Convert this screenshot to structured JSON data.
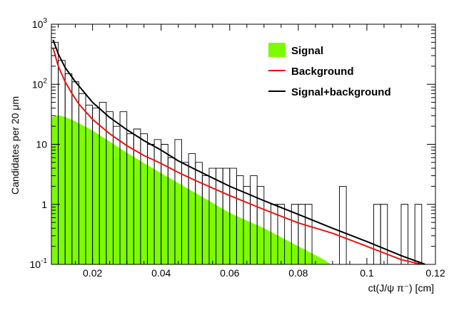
{
  "chart_data": {
    "type": "line",
    "title": "",
    "xlabel": "ct(J/ψ π⁻) [cm]",
    "ylabel": "Candidates per 20 μm",
    "xlim": [
      0.008,
      0.12
    ],
    "ylim": [
      0.1,
      1000
    ],
    "yscale": "log",
    "x_ticks": [
      {
        "value": 0.02,
        "label": "0.02"
      },
      {
        "value": 0.04,
        "label": "0.04"
      },
      {
        "value": 0.06,
        "label": "0.06"
      },
      {
        "value": 0.08,
        "label": "0.08"
      },
      {
        "value": 0.1,
        "label": "0.1"
      },
      {
        "value": 0.12,
        "label": "0.12"
      }
    ],
    "y_ticks": [
      {
        "value": 0.1,
        "base": "10",
        "exp": "-1",
        "text": "10⁻¹"
      },
      {
        "value": 1,
        "base": "1",
        "exp": "",
        "text": "1"
      },
      {
        "value": 10,
        "base": "10",
        "exp": "",
        "text": "10"
      },
      {
        "value": 100,
        "base": "10",
        "exp": "2",
        "text": "10²"
      },
      {
        "value": 1000,
        "base": "10",
        "exp": "3",
        "text": "10³"
      }
    ],
    "legend_position": "top-right",
    "legend": [
      {
        "label": "Signal",
        "style": "fill",
        "color": "#7cfc00"
      },
      {
        "label": "Background",
        "style": "line",
        "color": "#ee1111"
      },
      {
        "label": "Signal+background",
        "style": "line",
        "color": "#000000"
      }
    ],
    "series": [
      {
        "name": "Signal",
        "kind": "area",
        "color": "#7cfc00",
        "x": [
          0.008,
          0.0095,
          0.0105,
          0.0115,
          0.013,
          0.015,
          0.02,
          0.03,
          0.04,
          0.05,
          0.06,
          0.07,
          0.08,
          0.0875,
          0.0895
        ],
        "y": [
          28,
          30,
          30,
          29,
          27,
          24,
          17,
          7.2,
          3.3,
          1.55,
          0.72,
          0.4,
          0.2,
          0.12,
          0.1
        ]
      },
      {
        "name": "Background",
        "kind": "line",
        "color": "#ee1111",
        "x": [
          0.0085,
          0.01,
          0.012,
          0.014,
          0.016,
          0.018,
          0.02,
          0.025,
          0.03,
          0.035,
          0.04,
          0.045,
          0.05,
          0.06,
          0.07,
          0.08,
          0.09,
          0.1,
          0.11,
          0.116
        ],
        "y": [
          400,
          200,
          110,
          70,
          47,
          35,
          26,
          15,
          9.5,
          6.5,
          4.8,
          3.4,
          2.5,
          1.4,
          0.82,
          0.49,
          0.33,
          0.2,
          0.12,
          0.1
        ]
      },
      {
        "name": "Signal+background",
        "kind": "line",
        "color": "#000000",
        "x": [
          0.0085,
          0.01,
          0.012,
          0.015,
          0.02,
          0.025,
          0.03,
          0.035,
          0.04,
          0.045,
          0.05,
          0.06,
          0.07,
          0.08,
          0.09,
          0.1,
          0.11,
          0.117
        ],
        "y": [
          550,
          320,
          190,
          110,
          50,
          28,
          17.5,
          11.5,
          8,
          5.3,
          3.8,
          2,
          1.15,
          0.68,
          0.4,
          0.24,
          0.14,
          0.1
        ]
      },
      {
        "name": "Data histogram",
        "kind": "step",
        "color": "#000000",
        "bin_width": 0.002,
        "bins": [
          {
            "x": 0.008,
            "y": 500
          },
          {
            "x": 0.01,
            "y": 250
          },
          {
            "x": 0.012,
            "y": 150
          },
          {
            "x": 0.014,
            "y": 110
          },
          {
            "x": 0.016,
            "y": 70
          },
          {
            "x": 0.018,
            "y": 45
          },
          {
            "x": 0.02,
            "y": 40
          },
          {
            "x": 0.022,
            "y": 50
          },
          {
            "x": 0.024,
            "y": 35
          },
          {
            "x": 0.026,
            "y": 20
          },
          {
            "x": 0.028,
            "y": 35
          },
          {
            "x": 0.03,
            "y": 15
          },
          {
            "x": 0.032,
            "y": 18
          },
          {
            "x": 0.034,
            "y": 15
          },
          {
            "x": 0.036,
            "y": 10
          },
          {
            "x": 0.038,
            "y": 12
          },
          {
            "x": 0.04,
            "y": 10
          },
          {
            "x": 0.042,
            "y": 6
          },
          {
            "x": 0.044,
            "y": 12
          },
          {
            "x": 0.046,
            "y": 5
          },
          {
            "x": 0.048,
            "y": 7
          },
          {
            "x": 0.05,
            "y": 5
          },
          {
            "x": 0.052,
            "y": 3
          },
          {
            "x": 0.054,
            "y": 4
          },
          {
            "x": 0.056,
            "y": 4
          },
          {
            "x": 0.058,
            "y": 4
          },
          {
            "x": 0.06,
            "y": 4
          },
          {
            "x": 0.062,
            "y": 3
          },
          {
            "x": 0.064,
            "y": 2
          },
          {
            "x": 0.066,
            "y": 3
          },
          {
            "x": 0.068,
            "y": 2
          },
          {
            "x": 0.07,
            "y": 0.1
          },
          {
            "x": 0.072,
            "y": 1
          },
          {
            "x": 0.074,
            "y": 1
          },
          {
            "x": 0.076,
            "y": 0.1
          },
          {
            "x": 0.078,
            "y": 1
          },
          {
            "x": 0.08,
            "y": 1
          },
          {
            "x": 0.082,
            "y": 1
          },
          {
            "x": 0.084,
            "y": 0.1
          },
          {
            "x": 0.086,
            "y": 0.1
          },
          {
            "x": 0.088,
            "y": 0.1
          },
          {
            "x": 0.09,
            "y": 0.1
          },
          {
            "x": 0.092,
            "y": 2
          },
          {
            "x": 0.094,
            "y": 0.1
          },
          {
            "x": 0.096,
            "y": 0.1
          },
          {
            "x": 0.098,
            "y": 0.1
          },
          {
            "x": 0.1,
            "y": 0.1
          },
          {
            "x": 0.102,
            "y": 1
          },
          {
            "x": 0.104,
            "y": 1
          },
          {
            "x": 0.106,
            "y": 0.1
          },
          {
            "x": 0.108,
            "y": 0.1
          },
          {
            "x": 0.11,
            "y": 1
          },
          {
            "x": 0.112,
            "y": 0.1
          },
          {
            "x": 0.114,
            "y": 1
          }
        ]
      }
    ]
  }
}
